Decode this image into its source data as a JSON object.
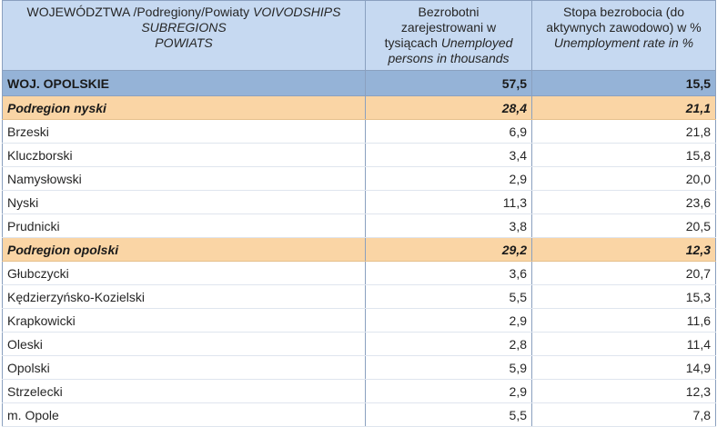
{
  "header": {
    "col1_line1_normal": "WOJEWÓDZTWA /Podregiony/Powiaty ",
    "col1_line1_italic": "VOIVODSHIPS",
    "col1_line2_italic": "SUBREGIONS",
    "col1_line3_italic": "POWIATS",
    "col2_line1": "Bezrobotni",
    "col2_line2": "zarejestrowani   w",
    "col2_line3_normal": "tysiącach ",
    "col2_line3_italic": "Unemployed",
    "col2_line4_italic": "persons in thousands",
    "col3_line1": "Stopa bezrobocia  (do",
    "col3_line2": "aktywnych zawodowo) w %",
    "col3_line3_italic": "Unemployment rate in  %"
  },
  "rows": [
    {
      "name": "WOJ. OPOLSKIE",
      "unemployed": "57,5",
      "rate": "15,5"
    },
    {
      "name": "Podregion nyski",
      "unemployed": "28,4",
      "rate": "21,1"
    },
    {
      "name": "Brzeski",
      "unemployed": "6,9",
      "rate": "21,8"
    },
    {
      "name": "Kluczborski",
      "unemployed": "3,4",
      "rate": "15,8"
    },
    {
      "name": "Namysłowski",
      "unemployed": "2,9",
      "rate": "20,0"
    },
    {
      "name": "Nyski",
      "unemployed": "11,3",
      "rate": "23,6"
    },
    {
      "name": "Prudnicki",
      "unemployed": "3,8",
      "rate": "20,5"
    },
    {
      "name": "Podregion opolski",
      "unemployed": "29,2",
      "rate": "12,3"
    },
    {
      "name": "Głubczycki",
      "unemployed": "3,6",
      "rate": "20,7"
    },
    {
      "name": "Kędzierzyńsko-Kozielski",
      "unemployed": "5,5",
      "rate": "15,3"
    },
    {
      "name": "Krapkowicki",
      "unemployed": "2,9",
      "rate": "11,6"
    },
    {
      "name": "Oleski",
      "unemployed": "2,8",
      "rate": "11,4"
    },
    {
      "name": "Opolski",
      "unemployed": "5,9",
      "rate": "14,9"
    },
    {
      "name": "Strzelecki",
      "unemployed": "2,9",
      "rate": "12,3"
    },
    {
      "name": "m. Opole",
      "unemployed": "5,5",
      "rate": "7,8"
    }
  ]
}
